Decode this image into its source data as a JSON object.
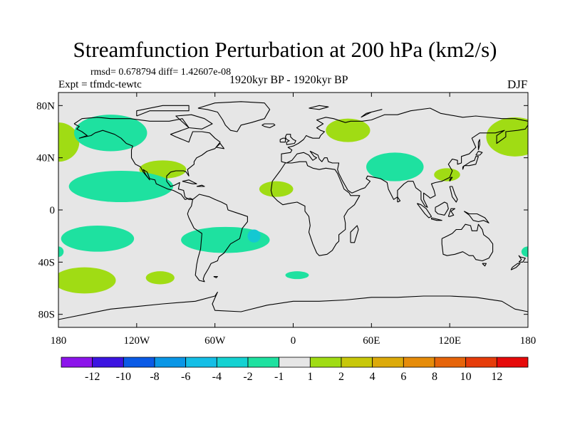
{
  "title": "Streamfunction Perturbation at 200 hPa (km2/s)",
  "stats": "rmsd= 0.678794 diff= 1.42607e-08",
  "experiment": "Expt = tfmdc-tewtc",
  "period": "1920kyr BP - 1920kyr BP",
  "season": "DJF",
  "map": {
    "projection": "cylindrical equidistant",
    "lon_range": [
      -180,
      180
    ],
    "lat_range": [
      -90,
      90
    ],
    "background_color": "#e6e6e6",
    "coastline_color": "#000000",
    "lat_labels": [
      {
        "lat": 80,
        "text": "80N"
      },
      {
        "lat": 40,
        "text": "40N"
      },
      {
        "lat": 0,
        "text": "0"
      },
      {
        "lat": -40,
        "text": "40S"
      },
      {
        "lat": -80,
        "text": "80S"
      }
    ],
    "lon_labels": [
      {
        "lon": -180,
        "text": "180"
      },
      {
        "lon": -120,
        "text": "120W"
      },
      {
        "lon": -60,
        "text": "60W"
      },
      {
        "lon": 0,
        "text": "0"
      },
      {
        "lon": 60,
        "text": "60E"
      },
      {
        "lon": 120,
        "text": "120E"
      },
      {
        "lon": 180,
        "text": "180"
      }
    ],
    "anomalies": [
      {
        "name": "green-nw-edge",
        "color": "#a0dc14",
        "lon": -180,
        "lat": 52,
        "rlon": 16,
        "rlat": 15
      },
      {
        "name": "teal-north-pacific",
        "color": "#1ee1a0",
        "lon": -140,
        "lat": 59,
        "rlon": 28,
        "rlat": 14
      },
      {
        "name": "green-north-america",
        "color": "#a0dc14",
        "lon": -100,
        "lat": 31,
        "rlon": 18,
        "rlat": 7
      },
      {
        "name": "teal-tropical-pacific",
        "color": "#1ee1a0",
        "lon": -132,
        "lat": 18,
        "rlon": 40,
        "rlat": 12
      },
      {
        "name": "teal-south-pacific",
        "color": "#1ee1a0",
        "lon": -150,
        "lat": -22,
        "rlon": 28,
        "rlat": 10
      },
      {
        "name": "green-south-pacific",
        "color": "#a0dc14",
        "lon": -160,
        "lat": -54,
        "rlon": 24,
        "rlat": 10
      },
      {
        "name": "green-se-pacific",
        "color": "#a0dc14",
        "lon": -102,
        "lat": -52,
        "rlon": 11,
        "rlat": 5
      },
      {
        "name": "teal-south-atlantic",
        "color": "#1ee1a0",
        "lon": -52,
        "lat": -23,
        "rlon": 34,
        "rlat": 10
      },
      {
        "name": "cyan-core-south-atlantic",
        "color": "#14c8d2",
        "lon": -30,
        "lat": -20,
        "rlon": 5,
        "rlat": 5
      },
      {
        "name": "green-west-africa",
        "color": "#a0dc14",
        "lon": -13,
        "lat": 16,
        "rlon": 13,
        "rlat": 6
      },
      {
        "name": "teal-south-of-africa",
        "color": "#1ee1a0",
        "lon": 3,
        "lat": -50,
        "rlon": 9,
        "rlat": 3
      },
      {
        "name": "green-russia",
        "color": "#a0dc14",
        "lon": 42,
        "lat": 61,
        "rlon": 17,
        "rlat": 9
      },
      {
        "name": "teal-arabia-india",
        "color": "#1ee1a0",
        "lon": 78,
        "lat": 33,
        "rlon": 22,
        "rlat": 11
      },
      {
        "name": "green-china",
        "color": "#a0dc14",
        "lon": 118,
        "lat": 27,
        "rlon": 10,
        "rlat": 5
      },
      {
        "name": "green-ne-edge",
        "color": "#a0dc14",
        "lon": 170,
        "lat": 56,
        "rlon": 22,
        "rlat": 15
      },
      {
        "name": "teal-sw-pacific-edge",
        "color": "#1ee1a0",
        "lon": 180,
        "lat": -32,
        "rlon": 5,
        "rlat": 4
      },
      {
        "name": "teal-w-edge-south",
        "color": "#1ee1a0",
        "lon": -180,
        "lat": -32,
        "rlon": 4,
        "rlat": 4
      }
    ]
  },
  "colorbar": {
    "colors": [
      "#8c14eb",
      "#3c14e1",
      "#0a5ae6",
      "#0a96e6",
      "#14bee6",
      "#14d2d2",
      "#1ee1a0",
      "#e6e6e6",
      "#a0dc14",
      "#c8c80a",
      "#dcaa0a",
      "#e68c0a",
      "#e6640a",
      "#e63c0a",
      "#e60a0a"
    ],
    "labels": [
      "-12",
      "-10",
      "-8",
      "-6",
      "-4",
      "-2",
      "-1",
      "1",
      "2",
      "4",
      "6",
      "8",
      "10",
      "12"
    ]
  }
}
